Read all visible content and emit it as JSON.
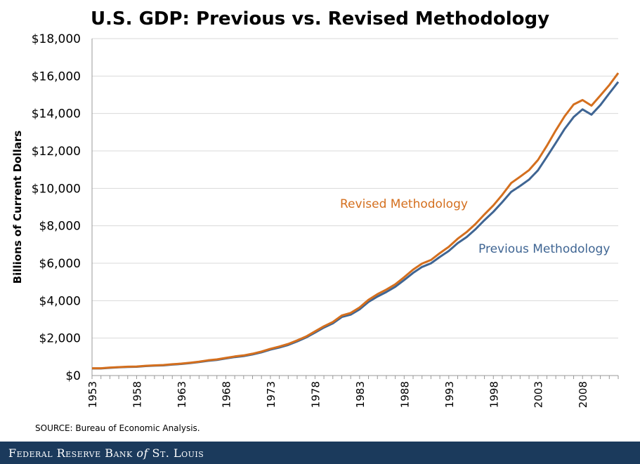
{
  "chart_data": {
    "type": "line",
    "title": "U.S. GDP: Previous vs. Revised Methodology",
    "xlabel": "",
    "ylabel": "Billions of Current Dollars",
    "ylim": [
      0,
      18000
    ],
    "xlim": [
      1953,
      2012
    ],
    "y_ticks": [
      0,
      2000,
      4000,
      6000,
      8000,
      10000,
      12000,
      14000,
      16000,
      18000
    ],
    "y_tick_labels": [
      "$0",
      "$2,000",
      "$4,000",
      "$6,000",
      "$8,000",
      "$10,000",
      "$12,000",
      "$14,000",
      "$16,000",
      "$18,000"
    ],
    "x_ticks": [
      1953,
      1958,
      1963,
      1968,
      1973,
      1978,
      1983,
      1988,
      1993,
      1998,
      2003,
      2008
    ],
    "x_tick_labels": [
      "1953",
      "1958",
      "1963",
      "1968",
      "1973",
      "1978",
      "1983",
      "1988",
      "1993",
      "1998",
      "2003",
      "2008"
    ],
    "grid": true,
    "x": [
      1953,
      1954,
      1955,
      1956,
      1957,
      1958,
      1959,
      1960,
      1961,
      1962,
      1963,
      1964,
      1965,
      1966,
      1967,
      1968,
      1969,
      1970,
      1971,
      1972,
      1973,
      1974,
      1975,
      1976,
      1977,
      1978,
      1979,
      1980,
      1981,
      1982,
      1983,
      1984,
      1985,
      1986,
      1987,
      1988,
      1989,
      1990,
      1991,
      1992,
      1993,
      1994,
      1995,
      1996,
      1997,
      1998,
      1999,
      2000,
      2001,
      2002,
      2003,
      2004,
      2005,
      2006,
      2007,
      2008,
      2009,
      2010,
      2011,
      2012
    ],
    "series": [
      {
        "name": "Revised Methodology",
        "color": "#d46f1e",
        "values": [
          390,
          391,
          426,
          450,
          474,
          482,
          522,
          543,
          564,
          603,
          637,
          685,
          743,
          815,
          862,
          943,
          1020,
          1076,
          1167,
          1282,
          1429,
          1549,
          1689,
          1878,
          2086,
          2357,
          2632,
          2862,
          3211,
          3345,
          3638,
          4041,
          4347,
          4590,
          4870,
          5253,
          5658,
          5980,
          6174,
          6539,
          6879,
          7309,
          7664,
          8100,
          8609,
          9089,
          9661,
          10285,
          10622,
          10978,
          11511,
          12275,
          13094,
          13856,
          14478,
          14719,
          14419,
          14964,
          15518,
          16163
        ]
      },
      {
        "name": "Previous Methodology",
        "color": "#3f6593",
        "values": [
          379,
          380,
          414,
          437,
          461,
          467,
          507,
          527,
          545,
          586,
          618,
          664,
          719,
          788,
          832,
          910,
          985,
          1039,
          1128,
          1240,
          1385,
          1501,
          1635,
          1823,
          2031,
          2295,
          2566,
          2789,
          3128,
          3255,
          3537,
          3933,
          4220,
          4463,
          4740,
          5104,
          5484,
          5803,
          5996,
          6338,
          6658,
          7072,
          7398,
          7817,
          8304,
          8747,
          9268,
          9817,
          10128,
          10470,
          10961,
          11686,
          12422,
          13178,
          13808,
          14219,
          13939,
          14447,
          15076,
          15685
        ]
      }
    ]
  },
  "annotations": {
    "revised_label": "Revised Methodology",
    "previous_label": "Previous Methodology"
  },
  "source_note": "SOURCE: Bureau of Economic Analysis.",
  "footer": {
    "part1": "Federal Reserve Bank ",
    "part2": "of",
    "part3": " St. Louis",
    "background": "#1b3a5c"
  }
}
